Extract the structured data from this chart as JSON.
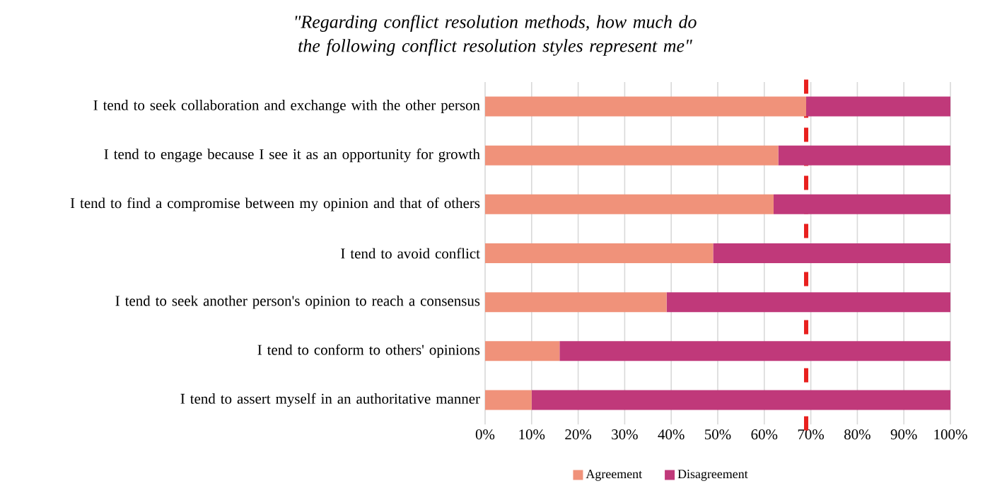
{
  "chart_data": {
    "type": "bar",
    "orientation": "horizontal",
    "stacked": true,
    "title": "\"Regarding conflict resolution methods, how much do the following conflict resolution styles represent me\"",
    "categories": [
      "I tend to seek collaboration and exchange with the other person",
      "I tend to engage because I see it as an opportunity for growth",
      "I tend to find a compromise between my opinion and that of others",
      "I tend to avoid conflict",
      "I tend to seek another person's opinion to reach a consensus",
      "I tend to conform to others' opinions",
      "I tend to assert myself in an authoritative manner"
    ],
    "series": [
      {
        "name": "Agreement",
        "color": "#f0927a",
        "values": [
          69,
          63,
          62,
          49,
          39,
          16,
          10
        ]
      },
      {
        "name": "Disagreement",
        "color": "#c0397a",
        "values": [
          31,
          37,
          38,
          51,
          61,
          84,
          90
        ]
      }
    ],
    "xlim": [
      0,
      100
    ],
    "xticks": [
      {
        "value": 0,
        "label": "0%"
      },
      {
        "value": 10,
        "label": "10%"
      },
      {
        "value": 20,
        "label": "20%"
      },
      {
        "value": 30,
        "label": "30%"
      },
      {
        "value": 40,
        "label": "40%"
      },
      {
        "value": 50,
        "label": "50%"
      },
      {
        "value": 60,
        "label": "60%"
      },
      {
        "value": 70,
        "label": "70%"
      },
      {
        "value": 80,
        "label": "80%"
      },
      {
        "value": 90,
        "label": "90%"
      },
      {
        "value": 100,
        "label": "100%"
      }
    ],
    "grid": "x",
    "legend": "bottom",
    "ref_lines": [
      {
        "axis": "x",
        "value": 69,
        "color": "#e8201e",
        "line_style": "dashed"
      }
    ]
  }
}
